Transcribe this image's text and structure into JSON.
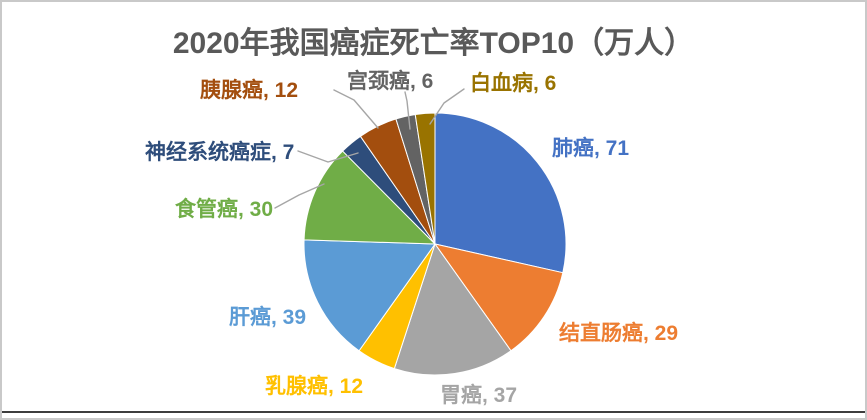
{
  "chart_data": {
    "type": "pie",
    "title": "2020年我国癌症死亡率TOP10（万人）",
    "title_color": "#595959",
    "start_angle_deg": 0,
    "direction": "clockwise",
    "legend": "none",
    "leader_line_color": "#a6a6a6",
    "slices": [
      {
        "id": "lung-cancer",
        "name": "肺癌",
        "value": 71,
        "color": "#4472C4",
        "display": "肺癌, 71"
      },
      {
        "id": "colorectal-cancer",
        "name": "结直肠癌",
        "value": 29,
        "color": "#ED7D31",
        "display": "结直肠癌, 29"
      },
      {
        "id": "stomach-cancer",
        "name": "胃癌",
        "value": 37,
        "color": "#A5A5A5",
        "display": "胃癌, 37"
      },
      {
        "id": "breast-cancer",
        "name": "乳腺癌",
        "value": 12,
        "color": "#FFC000",
        "display": "乳腺癌, 12"
      },
      {
        "id": "liver-cancer",
        "name": "肝癌",
        "value": 39,
        "color": "#5B9BD5",
        "display": "肝癌, 39"
      },
      {
        "id": "esophageal-cancer",
        "name": "食管癌",
        "value": 30,
        "color": "#70AD47",
        "display": "食管癌, 30"
      },
      {
        "id": "nervous-system-cancer",
        "name": "神经系统癌症",
        "value": 7,
        "color": "#2E4D7B",
        "display": "神经系统癌症, 7"
      },
      {
        "id": "pancreatic-cancer",
        "name": "胰腺癌",
        "value": 12,
        "color": "#A34E0E",
        "display": "胰腺癌, 12"
      },
      {
        "id": "cervical-cancer",
        "name": "宫颈癌",
        "value": 6,
        "color": "#636363",
        "display": "宫颈癌, 6"
      },
      {
        "id": "leukemia",
        "name": "白血病",
        "value": 6,
        "color": "#997300",
        "display": "白血病, 6"
      }
    ]
  }
}
